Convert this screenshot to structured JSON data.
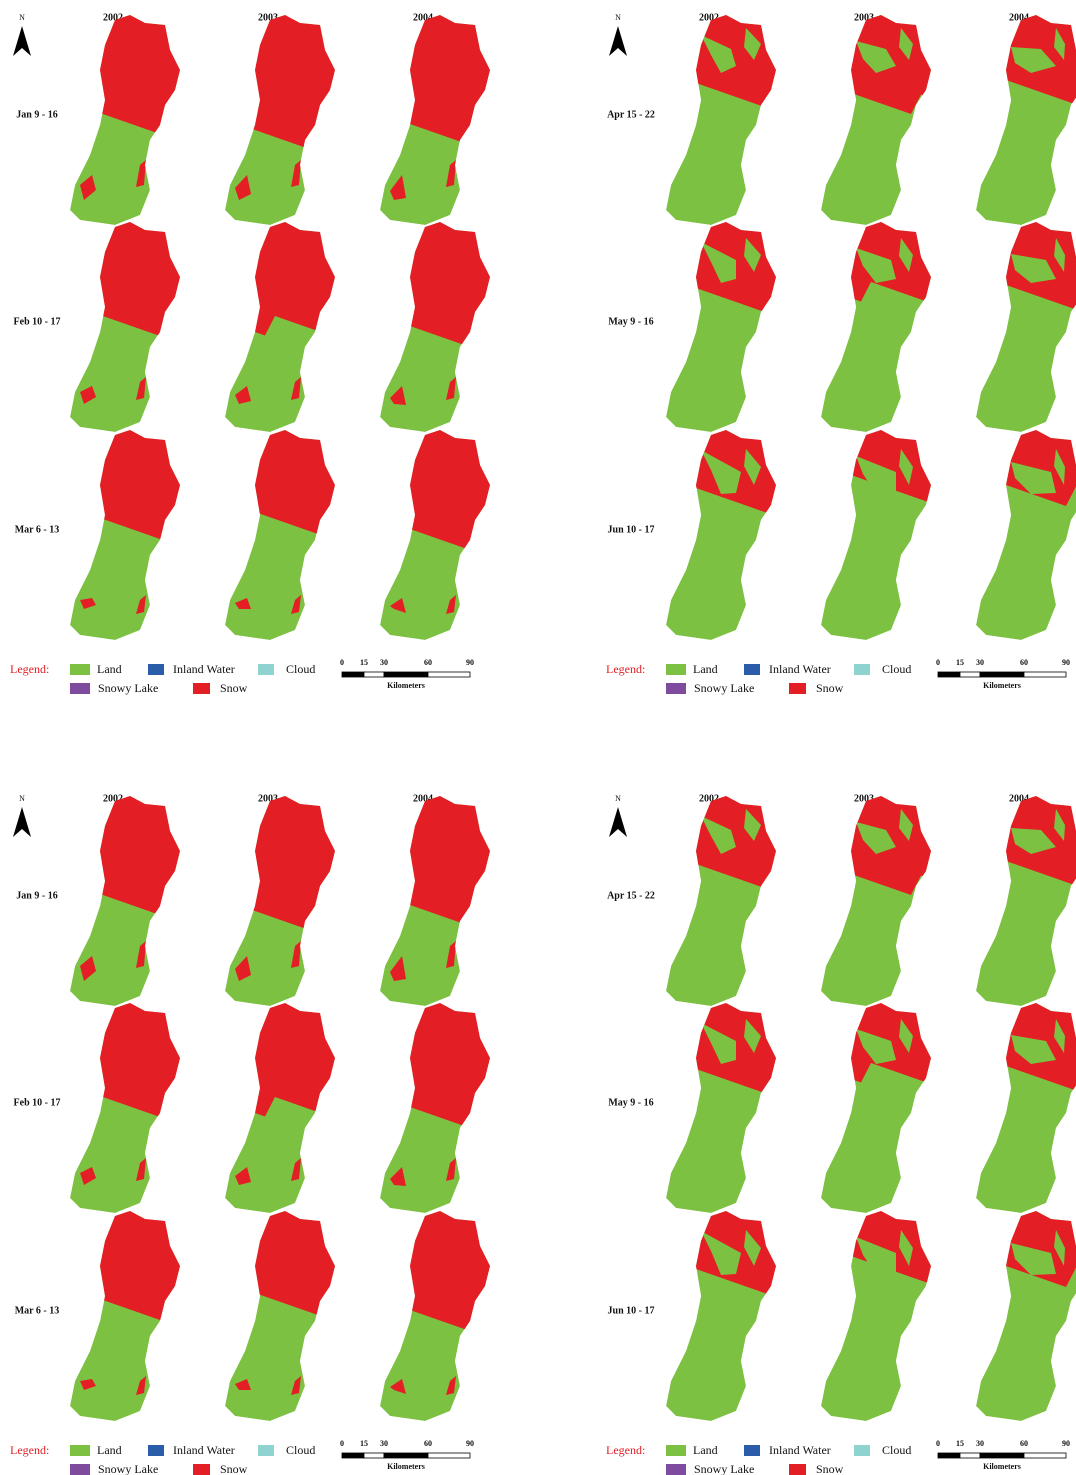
{
  "panels": [
    {
      "north": "N",
      "years": [
        "2002",
        "2003",
        "2004"
      ],
      "rows": [
        "Jan 9 - 16",
        "Feb 10 - 17",
        "Mar 6 - 13"
      ],
      "legend": {
        "title": "Legend:",
        "items": [
          {
            "label": "Land",
            "color": "#7dc142"
          },
          {
            "label": "Inland Water",
            "color": "#2a5caa"
          },
          {
            "label": "Cloud",
            "color": "#8fd3d0"
          },
          {
            "label": "Snowy Lake",
            "color": "#7f4b9e"
          },
          {
            "label": "Snow",
            "color": "#e31e24"
          }
        ]
      },
      "scale": {
        "ticks": [
          "0",
          "15",
          "30",
          "60",
          "90"
        ],
        "unit": "Kilometers"
      }
    },
    {
      "north": "N",
      "years": [
        "2002",
        "2003",
        "2004"
      ],
      "rows": [
        "Apr 15 - 22",
        "May 9 - 16",
        "Jun 10 - 17"
      ],
      "legend": {
        "title": "Legend:",
        "items": [
          {
            "label": "Land",
            "color": "#7dc142"
          },
          {
            "label": "Inland Water",
            "color": "#2a5caa"
          },
          {
            "label": "Cloud",
            "color": "#8fd3d0"
          },
          {
            "label": "Snowy Lake",
            "color": "#7f4b9e"
          },
          {
            "label": "Snow",
            "color": "#e31e24"
          }
        ]
      },
      "scale": {
        "ticks": [
          "0",
          "15",
          "30",
          "60",
          "90"
        ],
        "unit": "Kilometers"
      }
    },
    {
      "north": "N",
      "years": [
        "2002",
        "2003",
        "2004"
      ],
      "rows": [
        "Jan 9 - 16",
        "Feb 10 - 17",
        "Mar 6 - 13"
      ],
      "legend": {
        "title": "Legend:",
        "items": [
          {
            "label": "Land",
            "color": "#7dc142"
          },
          {
            "label": "Inland Water",
            "color": "#2a5caa"
          },
          {
            "label": "Cloud",
            "color": "#8fd3d0"
          },
          {
            "label": "Snowy Lake",
            "color": "#7f4b9e"
          },
          {
            "label": "Snow",
            "color": "#e31e24"
          }
        ]
      },
      "scale": {
        "ticks": [
          "0",
          "15",
          "30",
          "60",
          "90"
        ],
        "unit": "Kilometers"
      }
    },
    {
      "north": "N",
      "years": [
        "2002",
        "2003",
        "2004"
      ],
      "rows": [
        "Apr 15 - 22",
        "May 9 - 16",
        "Jun 10 - 17"
      ],
      "legend": {
        "title": "Legend:",
        "items": [
          {
            "label": "Land",
            "color": "#7dc142"
          },
          {
            "label": "Inland Water",
            "color": "#2a5caa"
          },
          {
            "label": "Cloud",
            "color": "#8fd3d0"
          },
          {
            "label": "Snowy Lake",
            "color": "#7f4b9e"
          },
          {
            "label": "Snow",
            "color": "#e31e24"
          }
        ]
      },
      "scale": {
        "ticks": [
          "0",
          "15",
          "30",
          "60",
          "90"
        ],
        "unit": "Kilometers"
      }
    }
  ]
}
